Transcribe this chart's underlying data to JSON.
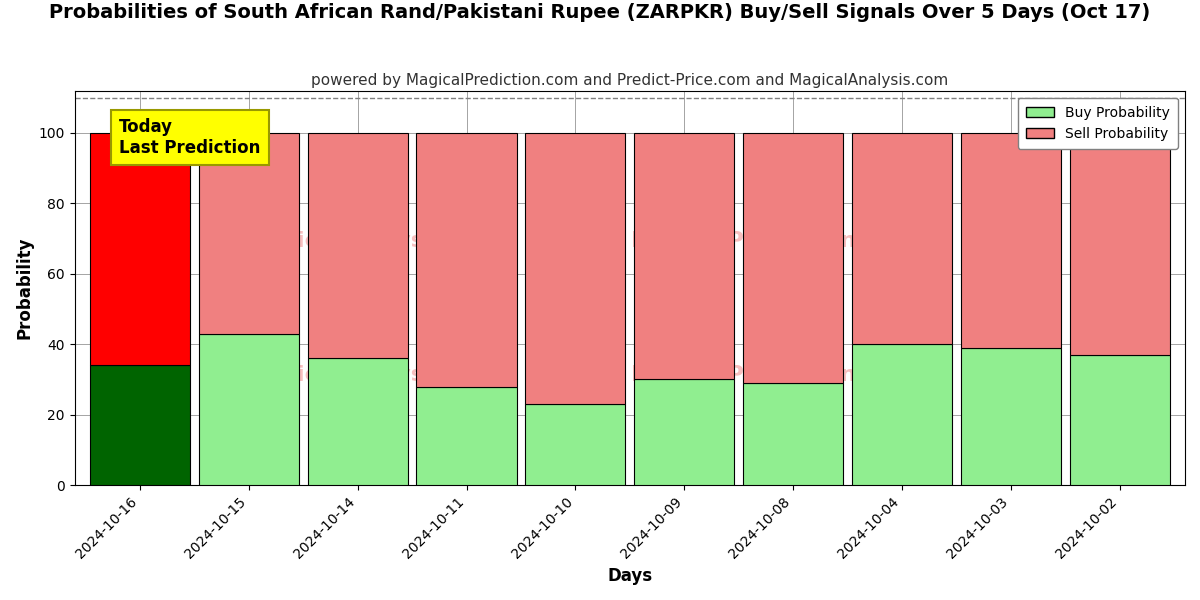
{
  "title": "Probabilities of South African Rand/Pakistani Rupee (ZARPKR) Buy/Sell Signals Over 5 Days (Oct 17)",
  "subtitle": "powered by MagicalPrediction.com and Predict-Price.com and MagicalAnalysis.com",
  "xlabel": "Days",
  "ylabel": "Probability",
  "categories": [
    "2024-10-16",
    "2024-10-15",
    "2024-10-14",
    "2024-10-11",
    "2024-10-10",
    "2024-10-09",
    "2024-10-08",
    "2024-10-04",
    "2024-10-03",
    "2024-10-02"
  ],
  "buy_values": [
    34,
    43,
    36,
    28,
    23,
    30,
    29,
    40,
    39,
    37
  ],
  "sell_values": [
    66,
    57,
    64,
    72,
    77,
    70,
    71,
    60,
    61,
    63
  ],
  "buy_color_today": "#006400",
  "sell_color_today": "#FF0000",
  "buy_color_rest": "#90EE90",
  "sell_color_rest": "#F08080",
  "bar_edge_color": "#000000",
  "ylim": [
    0,
    112
  ],
  "yticks": [
    0,
    20,
    40,
    60,
    80,
    100
  ],
  "dashed_line_y": 110,
  "annotation_text": "Today\nLast Prediction",
  "annotation_bg": "#FFFF00",
  "legend_buy_label": "Buy Probability",
  "legend_sell_label": "Sell Probability",
  "title_fontsize": 14,
  "subtitle_fontsize": 11,
  "axis_label_fontsize": 12,
  "tick_fontsize": 10,
  "bar_width": 0.92
}
